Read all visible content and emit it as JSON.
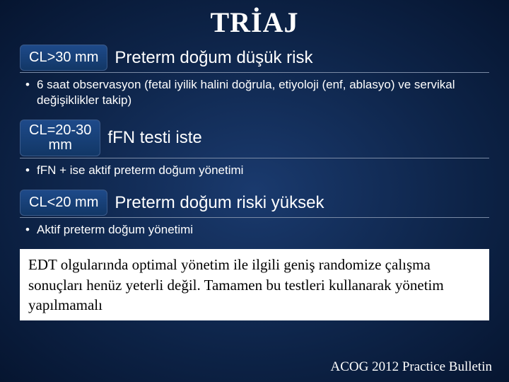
{
  "title": "TRİAJ",
  "sections": [
    {
      "pill": "CL>30 mm",
      "pill_two_line": false,
      "heading": "Preterm doğum düşük risk",
      "bullet": "6 saat observasyon (fetal iyilik halini doğrula, etiyoloji (enf, ablasyo) ve servikal değişiklikler takip)"
    },
    {
      "pill": "CL=20-30\nmm",
      "pill_two_line": true,
      "heading": "fFN testi iste",
      "bullet": "fFN + ise aktif preterm doğum yönetimi"
    },
    {
      "pill": "CL<20 mm",
      "pill_two_line": false,
      "heading": "Preterm doğum riski yüksek",
      "bullet": "Aktif preterm doğum yönetimi"
    }
  ],
  "note": "EDT olgularında optimal yönetim ile ilgili geniş randomize çalışma sonuçları henüz yeterli değil. Tamamen bu testleri kullanarak yönetim yapılmamalı",
  "citation": "ACOG 2012 Practice Bulletin",
  "colors": {
    "bg_center": "#1a3a6e",
    "bg_edge": "#061530",
    "pill_bg": "#123766",
    "rule": "#7a8aa5",
    "note_bg": "#ffffff",
    "note_text": "#000000",
    "text": "#ffffff"
  }
}
